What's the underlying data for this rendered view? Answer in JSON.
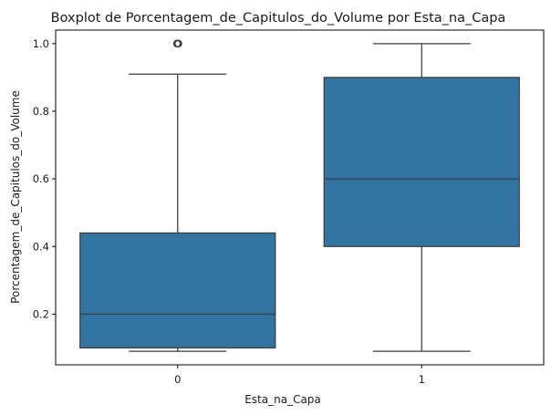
{
  "chart_data": {
    "type": "box",
    "title": "Boxplot de Porcentagem_de_Capitulos_do_Volume por Esta_na_Capa",
    "xlabel": "Esta_na_Capa",
    "ylabel": "Porcentagem_de_Capitulos_do_Volume",
    "categories": [
      "0",
      "1"
    ],
    "ylim": [
      0.05,
      1.04
    ],
    "yticks": [
      0.2,
      0.4,
      0.6,
      0.8,
      1.0
    ],
    "ytick_labels": [
      "0.2",
      "0.4",
      "0.6",
      "0.8",
      "1.0"
    ],
    "grid": false,
    "box_color": "#3274a1",
    "edge_color": "#3d3d3d",
    "boxes": [
      {
        "category": "0",
        "whisker_low": 0.09,
        "q1": 0.1,
        "median": 0.2,
        "q3": 0.44,
        "whisker_high": 0.91,
        "outliers": [
          1.0,
          1.0,
          1.0
        ]
      },
      {
        "category": "1",
        "whisker_low": 0.09,
        "q1": 0.4,
        "median": 0.6,
        "q3": 0.9,
        "whisker_high": 1.0,
        "outliers": []
      }
    ]
  }
}
